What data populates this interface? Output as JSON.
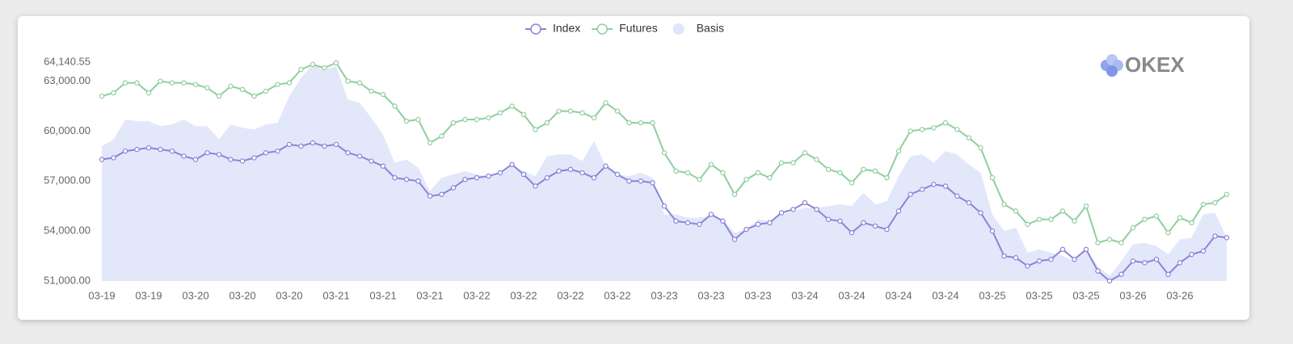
{
  "chart_data": {
    "type": "line",
    "watermark": "OKEX",
    "categories": [
      "03-19",
      null,
      null,
      null,
      "03-19",
      null,
      null,
      null,
      "03-20",
      null,
      null,
      null,
      "03-20",
      null,
      null,
      null,
      "03-20",
      null,
      null,
      null,
      "03-21",
      null,
      null,
      null,
      "03-21",
      null,
      null,
      null,
      "03-21",
      null,
      null,
      null,
      "03-22",
      null,
      null,
      null,
      "03-22",
      null,
      null,
      null,
      "03-22",
      null,
      null,
      null,
      "03-22",
      null,
      null,
      null,
      "03-23",
      null,
      null,
      null,
      "03-23",
      null,
      null,
      null,
      "03-23",
      null,
      null,
      null,
      "03-24",
      null,
      null,
      null,
      "03-24",
      null,
      null,
      null,
      "03-24",
      null,
      null,
      null,
      "03-24",
      null,
      null,
      null,
      "03-25",
      null,
      null,
      null,
      "03-25",
      null,
      null,
      null,
      "03-25",
      null,
      null,
      null,
      "03-26",
      null,
      null,
      null,
      "03-26",
      null,
      null,
      null,
      null
    ],
    "series": [
      {
        "name": "Index",
        "color": "#8b84d7",
        "values": [
          58300,
          58400,
          58800,
          58900,
          59000,
          58900,
          58800,
          58500,
          58300,
          58700,
          58600,
          58300,
          58200,
          58400,
          58700,
          58800,
          59200,
          59100,
          59300,
          59100,
          59200,
          58700,
          58500,
          58200,
          57900,
          57200,
          57100,
          57000,
          56100,
          56200,
          56600,
          57100,
          57200,
          57300,
          57500,
          58000,
          57400,
          56700,
          57200,
          57600,
          57700,
          57500,
          57200,
          57900,
          57400,
          57000,
          57000,
          56900,
          55500,
          54600,
          54500,
          54400,
          55000,
          54600,
          53500,
          54100,
          54400,
          54500,
          55100,
          55300,
          55700,
          55300,
          54700,
          54600,
          53900,
          54500,
          54300,
          54100,
          55200,
          56200,
          56500,
          56800,
          56700,
          56100,
          55700,
          55100,
          54000,
          52500,
          52400,
          51900,
          52200,
          52300,
          52900,
          52300,
          52900,
          51600,
          51000,
          51400,
          52200,
          52100,
          52300,
          51400,
          52100,
          52600,
          52800,
          53700,
          53600
        ]
      },
      {
        "name": "Futures",
        "color": "#8fcf9e",
        "values": [
          62100,
          62300,
          62900,
          62900,
          62300,
          63000,
          62900,
          62900,
          62800,
          62600,
          62100,
          62700,
          62500,
          62100,
          62400,
          62800,
          62900,
          63700,
          64000,
          63800,
          64100,
          63000,
          62900,
          62400,
          62200,
          61500,
          60600,
          60700,
          59300,
          59700,
          60500,
          60700,
          60700,
          60800,
          61100,
          61500,
          61000,
          60100,
          60500,
          61200,
          61200,
          61100,
          60800,
          61700,
          61200,
          60500,
          60500,
          60500,
          58700,
          57600,
          57500,
          57100,
          58000,
          57500,
          56200,
          57100,
          57500,
          57200,
          58100,
          58100,
          58700,
          58300,
          57700,
          57500,
          56900,
          57700,
          57600,
          57200,
          58800,
          60000,
          60100,
          60200,
          60500,
          60100,
          59600,
          59000,
          57200,
          55600,
          55200,
          54400,
          54700,
          54700,
          55200,
          54600,
          55500,
          53300,
          53500,
          53300,
          54200,
          54700,
          54900,
          53900,
          54800,
          54500,
          55600,
          55700,
          56200
        ]
      },
      {
        "name": "Basis",
        "color": "#dfe5fa",
        "area": true,
        "values": [
          59100,
          59500,
          60700,
          60600,
          60600,
          60300,
          60400,
          60700,
          60300,
          60300,
          59500,
          60400,
          60200,
          60100,
          60400,
          60500,
          62100,
          63200,
          64000,
          63700,
          63900,
          61900,
          61700,
          60800,
          59800,
          58100,
          58300,
          57800,
          56400,
          57200,
          57400,
          57600,
          57400,
          57300,
          57400,
          57900,
          57600,
          57300,
          58500,
          58600,
          58600,
          58200,
          59400,
          57900,
          57400,
          57300,
          57500,
          57200,
          55000,
          55000,
          54800,
          54800,
          54900,
          54700,
          53900,
          54100,
          54700,
          54600,
          55000,
          55200,
          55400,
          55400,
          55500,
          55600,
          55500,
          56300,
          55600,
          55800,
          57300,
          58500,
          58600,
          58100,
          58800,
          58600,
          58000,
          57500,
          55000,
          54000,
          54200,
          52700,
          52900,
          52700,
          52500,
          52200,
          52900,
          51900,
          51300,
          52200,
          53200,
          53300,
          53100,
          52600,
          53500,
          53600,
          55000,
          55100,
          53600
        ]
      }
    ],
    "ylim": [
      51000,
      64140.55
    ],
    "yticks": [
      {
        "value": 51000,
        "label": "51,000.00"
      },
      {
        "value": 54000,
        "label": "54,000.00"
      },
      {
        "value": 57000,
        "label": "57,000.00"
      },
      {
        "value": 60000,
        "label": "60,000.00"
      },
      {
        "value": 63000,
        "label": "63,000.00"
      },
      {
        "value": 64140.55,
        "label": "64,140.55"
      }
    ],
    "legend": "top"
  }
}
